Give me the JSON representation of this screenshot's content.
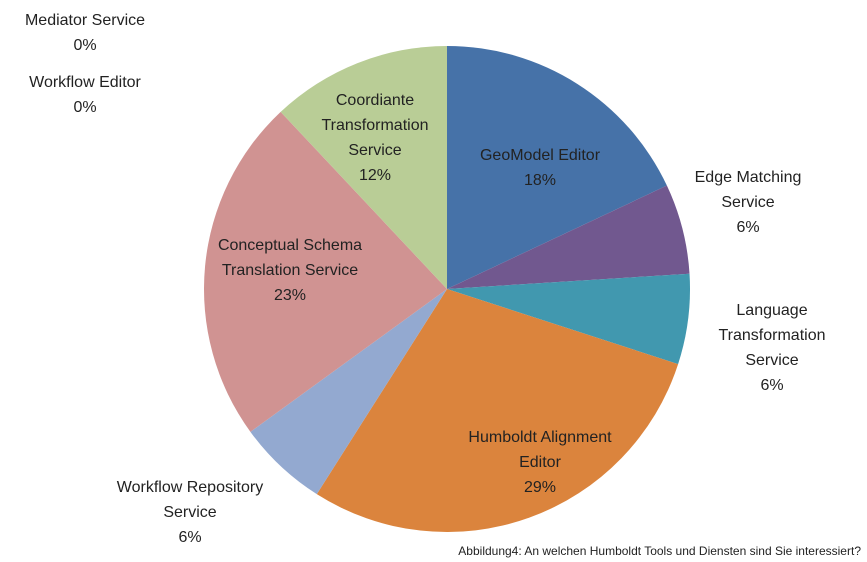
{
  "chart_data": {
    "type": "pie",
    "caption": "Abbildung4: An welchen Humboldt Tools und Diensten sind Sie interessiert?",
    "categories": [
      "GeoModel Editor",
      "Edge Matching Service",
      "Language Transformation Service",
      "Humboldt Alignment Editor",
      "Workflow Repository Service",
      "Conceptual Schema Translation Service",
      "Coordiante Transformation Service",
      "Mediator Service",
      "Workflow Editor"
    ],
    "values": [
      18,
      6,
      6,
      29,
      6,
      23,
      12,
      0,
      0
    ],
    "value_labels": [
      "18%",
      "6%",
      "6%",
      "29%",
      "6%",
      "23%",
      "12%",
      "0%",
      "0%"
    ],
    "colors": [
      "#4672a8",
      "#71588f",
      "#4198af",
      "#db843d",
      "#93a9d0",
      "#d09392",
      "#b9cd96",
      "#8eb4e3",
      "#f9b97a"
    ]
  }
}
